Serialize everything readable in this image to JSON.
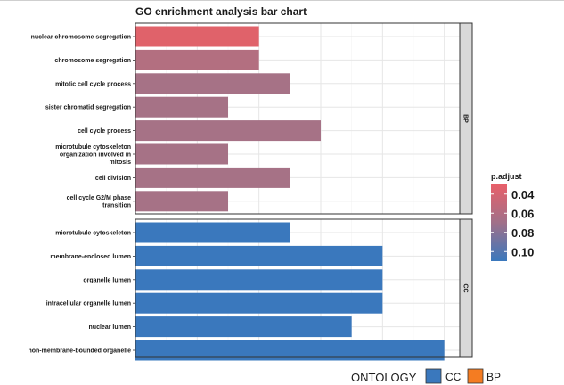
{
  "chart_data": {
    "type": "bar",
    "orientation": "horizontal",
    "title": "GO enrichment analysis bar chart",
    "xlabel": "",
    "ylabel": "",
    "xlim": [
      0,
      10.5
    ],
    "grid": true,
    "facets": [
      {
        "label": "BP",
        "categories": [
          "nuclear chromosome segregation",
          "chromosome segregation",
          "mitotic cell cycle process",
          "sister chromatid segregation",
          "cell cycle process",
          "microtubule cytoskeleton\norganization involved in\nmitosis",
          "cell division",
          "cell cycle G2/M phase\ntransition"
        ],
        "values": [
          4,
          4,
          5,
          3,
          6,
          3,
          5,
          3
        ],
        "colors": [
          "#e0626a",
          "#b36f80",
          "#a67286",
          "#a67286",
          "#a67286",
          "#a67286",
          "#a67286",
          "#a67286"
        ]
      },
      {
        "label": "CC",
        "categories": [
          "microtubule cytoskeleton",
          "membrane-enclosed lumen",
          "organelle lumen",
          "intracellular organelle lumen",
          "nuclear lumen",
          "non-membrane-bounded organelle"
        ],
        "values": [
          5,
          8,
          8,
          8,
          7,
          10
        ],
        "colors": [
          "#3a78bd",
          "#3a78bd",
          "#3a78bd",
          "#3a78bd",
          "#3a78bd",
          "#3a78bd"
        ]
      }
    ],
    "colorbar": {
      "title": "p.adjust",
      "ticks": [
        "0.04",
        "0.06",
        "0.08",
        "0.10"
      ],
      "range": [
        0.03,
        0.11
      ],
      "low_color": "#e8606a",
      "high_color": "#3a78bd"
    },
    "legend": {
      "title": "ONTOLOGY",
      "placement": "bottom-right",
      "items": [
        {
          "label": "CC",
          "color": "#3a78bd"
        },
        {
          "label": "BP",
          "color": "#f47c22"
        }
      ]
    }
  }
}
